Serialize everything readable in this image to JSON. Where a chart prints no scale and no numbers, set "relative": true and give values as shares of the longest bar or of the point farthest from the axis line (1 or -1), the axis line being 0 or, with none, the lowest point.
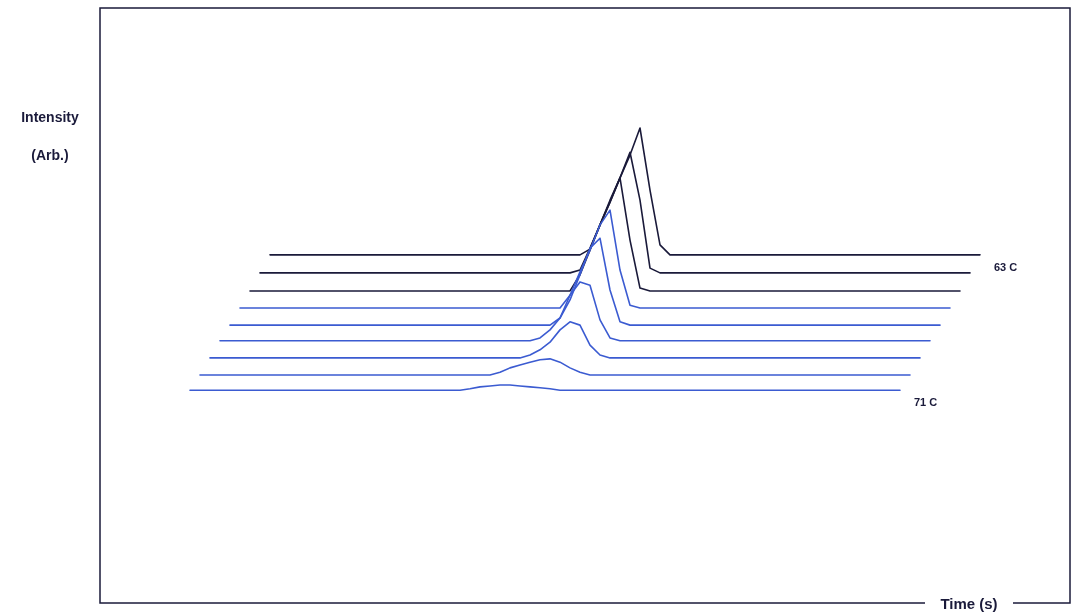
{
  "chart_data": {
    "type": "line",
    "relative": true,
    "xlabel": "Time (s)",
    "ylabel": "Intensity (Arb.)",
    "categories": [
      null,
      null,
      null,
      null,
      null,
      null,
      null,
      null,
      null,
      null,
      null,
      null,
      null,
      null,
      null,
      null,
      null,
      null,
      null,
      null,
      null,
      null,
      null,
      null,
      null,
      null,
      null,
      null,
      null,
      null,
      null,
      null,
      null,
      null,
      null,
      null,
      null,
      null,
      null,
      null,
      null,
      null,
      null,
      null,
      null,
      null,
      null,
      null,
      null,
      null,
      null,
      null,
      null,
      null,
      null,
      null,
      null,
      null,
      null,
      null,
      null,
      null,
      null,
      null,
      null,
      null,
      null,
      null,
      null,
      null,
      null,
      null,
      null,
      null,
      null,
      null,
      null,
      null,
      null,
      null,
      null,
      null,
      null,
      null,
      null,
      null,
      null,
      null,
      null,
      null,
      null,
      null,
      null,
      null,
      null,
      null,
      null,
      null
    ],
    "series": [
      {
        "name": "63 C",
        "color": "#1a1a3a",
        "values": [
          null,
          null,
          null,
          null,
          null,
          null,
          null,
          null,
          null,
          null,
          null,
          null,
          null,
          null,
          null,
          null,
          null,
          0.733,
          0.733,
          0.733,
          0.733,
          0.733,
          0.733,
          0.733,
          0.733,
          0.733,
          0.733,
          0.733,
          0.733,
          0.733,
          0.733,
          0.733,
          0.733,
          0.733,
          0.733,
          0.733,
          0.733,
          0.733,
          0.733,
          0.733,
          0.733,
          0.733,
          0.733,
          0.733,
          0.733,
          0.733,
          0.733,
          0.733,
          0.733,
          0.745,
          0.796,
          0.844,
          0.895,
          0.943,
          1.0,
          0.869,
          0.754,
          0.733,
          0.733,
          0.733,
          0.733,
          0.733,
          0.733,
          0.733,
          0.733,
          0.733,
          0.733,
          0.733,
          0.733,
          0.733,
          0.733,
          0.733,
          0.733,
          0.733,
          0.733,
          0.733,
          0.733,
          0.733,
          0.733,
          0.733,
          0.733,
          0.733,
          0.733,
          0.733,
          0.733,
          0.733,
          0.733,
          0.733,
          0.733,
          null,
          null,
          null,
          null,
          null,
          null,
          null,
          null,
          null
        ]
      },
      {
        "color": "#1a1a3a",
        "values": [
          null,
          null,
          null,
          null,
          null,
          null,
          null,
          null,
          null,
          null,
          null,
          null,
          null,
          null,
          null,
          null,
          0.695,
          0.695,
          0.695,
          0.695,
          0.695,
          0.695,
          0.695,
          0.695,
          0.695,
          0.695,
          0.695,
          0.695,
          0.695,
          0.695,
          0.695,
          0.695,
          0.695,
          0.695,
          0.695,
          0.695,
          0.695,
          0.695,
          0.695,
          0.695,
          0.695,
          0.695,
          0.695,
          0.695,
          0.695,
          0.695,
          0.695,
          0.695,
          0.701,
          0.747,
          0.796,
          0.844,
          0.895,
          0.949,
          0.848,
          0.705,
          0.695,
          0.695,
          0.695,
          0.695,
          0.695,
          0.695,
          0.695,
          0.695,
          0.695,
          0.695,
          0.695,
          0.695,
          0.695,
          0.695,
          0.695,
          0.695,
          0.695,
          0.695,
          0.695,
          0.695,
          0.695,
          0.695,
          0.695,
          0.695,
          0.695,
          0.695,
          0.695,
          0.695,
          0.695,
          0.695,
          0.695,
          0.695,
          null,
          null,
          null,
          null,
          null,
          null,
          null,
          null,
          null,
          null
        ]
      },
      {
        "color": "#1a1a3a",
        "values": [
          null,
          null,
          null,
          null,
          null,
          null,
          null,
          null,
          null,
          null,
          null,
          null,
          null,
          null,
          null,
          0.657,
          0.657,
          0.657,
          0.657,
          0.657,
          0.657,
          0.657,
          0.657,
          0.657,
          0.657,
          0.657,
          0.657,
          0.657,
          0.657,
          0.657,
          0.657,
          0.657,
          0.657,
          0.657,
          0.657,
          0.657,
          0.657,
          0.657,
          0.657,
          0.657,
          0.657,
          0.657,
          0.657,
          0.657,
          0.657,
          0.657,
          0.657,
          0.657,
          0.691,
          0.743,
          0.796,
          0.848,
          0.895,
          0.764,
          0.663,
          0.657,
          0.657,
          0.657,
          0.657,
          0.657,
          0.657,
          0.657,
          0.657,
          0.657,
          0.657,
          0.657,
          0.657,
          0.657,
          0.657,
          0.657,
          0.657,
          0.657,
          0.657,
          0.657,
          0.657,
          0.657,
          0.657,
          0.657,
          0.657,
          0.657,
          0.657,
          0.657,
          0.657,
          0.657,
          0.657,
          0.657,
          0.657,
          null,
          null,
          null,
          null,
          null,
          null,
          null,
          null,
          null,
          null,
          null
        ]
      },
      {
        "color": "#3b5bd1",
        "values": [
          null,
          null,
          null,
          null,
          null,
          null,
          null,
          null,
          null,
          null,
          null,
          null,
          null,
          null,
          0.621,
          0.621,
          0.621,
          0.621,
          0.621,
          0.621,
          0.621,
          0.621,
          0.621,
          0.621,
          0.621,
          0.621,
          0.621,
          0.621,
          0.621,
          0.621,
          0.621,
          0.621,
          0.621,
          0.621,
          0.621,
          0.621,
          0.621,
          0.621,
          0.621,
          0.621,
          0.621,
          0.621,
          0.621,
          0.621,
          0.621,
          0.621,
          0.621,
          0.648,
          0.697,
          0.743,
          0.796,
          0.827,
          0.701,
          0.627,
          0.621,
          0.621,
          0.621,
          0.621,
          0.621,
          0.621,
          0.621,
          0.621,
          0.621,
          0.621,
          0.621,
          0.621,
          0.621,
          0.621,
          0.621,
          0.621,
          0.621,
          0.621,
          0.621,
          0.621,
          0.621,
          0.621,
          0.621,
          0.621,
          0.621,
          0.621,
          0.621,
          0.621,
          0.621,
          0.621,
          0.621,
          0.621,
          null,
          null,
          null,
          null,
          null,
          null,
          null,
          null,
          null,
          null,
          null,
          null
        ]
      },
      {
        "color": "#3b5bd1",
        "values": [
          null,
          null,
          null,
          null,
          null,
          null,
          null,
          null,
          null,
          null,
          null,
          null,
          null,
          0.585,
          0.585,
          0.585,
          0.585,
          0.585,
          0.585,
          0.585,
          0.585,
          0.585,
          0.585,
          0.585,
          0.585,
          0.585,
          0.585,
          0.585,
          0.585,
          0.585,
          0.585,
          0.585,
          0.585,
          0.585,
          0.585,
          0.585,
          0.585,
          0.585,
          0.585,
          0.585,
          0.585,
          0.585,
          0.585,
          0.585,
          0.585,
          0.585,
          0.6,
          0.638,
          0.691,
          0.747,
          0.768,
          0.659,
          0.592,
          0.585,
          0.585,
          0.585,
          0.585,
          0.585,
          0.585,
          0.585,
          0.585,
          0.585,
          0.585,
          0.585,
          0.585,
          0.585,
          0.585,
          0.585,
          0.585,
          0.585,
          0.585,
          0.585,
          0.585,
          0.585,
          0.585,
          0.585,
          0.585,
          0.585,
          0.585,
          0.585,
          0.585,
          0.585,
          0.585,
          0.585,
          0.585,
          null,
          null,
          null,
          null,
          null,
          null,
          null,
          null,
          null,
          null,
          null,
          null,
          null
        ]
      },
      {
        "color": "#3b5bd1",
        "values": [
          null,
          null,
          null,
          null,
          null,
          null,
          null,
          null,
          null,
          null,
          null,
          null,
          0.552,
          0.552,
          0.552,
          0.552,
          0.552,
          0.552,
          0.552,
          0.552,
          0.552,
          0.552,
          0.552,
          0.552,
          0.552,
          0.552,
          0.552,
          0.552,
          0.552,
          0.552,
          0.552,
          0.552,
          0.552,
          0.552,
          0.552,
          0.552,
          0.552,
          0.552,
          0.552,
          0.552,
          0.552,
          0.552,
          0.552,
          0.552,
          0.558,
          0.575,
          0.6,
          0.648,
          0.676,
          0.669,
          0.596,
          0.558,
          0.552,
          0.552,
          0.552,
          0.552,
          0.552,
          0.552,
          0.552,
          0.552,
          0.552,
          0.552,
          0.552,
          0.552,
          0.552,
          0.552,
          0.552,
          0.552,
          0.552,
          0.552,
          0.552,
          0.552,
          0.552,
          0.552,
          0.552,
          0.552,
          0.552,
          0.552,
          0.552,
          0.552,
          0.552,
          0.552,
          0.552,
          0.552,
          null,
          null,
          null,
          null,
          null,
          null,
          null,
          null,
          null,
          null,
          null,
          null,
          null,
          null
        ]
      },
      {
        "color": "#3b5bd1",
        "values": [
          null,
          null,
          null,
          null,
          null,
          null,
          null,
          null,
          null,
          null,
          null,
          0.516,
          0.516,
          0.516,
          0.516,
          0.516,
          0.516,
          0.516,
          0.516,
          0.516,
          0.516,
          0.516,
          0.516,
          0.516,
          0.516,
          0.516,
          0.516,
          0.516,
          0.516,
          0.516,
          0.516,
          0.516,
          0.516,
          0.516,
          0.516,
          0.516,
          0.516,
          0.516,
          0.516,
          0.516,
          0.516,
          0.516,
          0.516,
          0.522,
          0.533,
          0.549,
          0.575,
          0.592,
          0.585,
          0.543,
          0.522,
          0.516,
          0.516,
          0.516,
          0.516,
          0.516,
          0.516,
          0.516,
          0.516,
          0.516,
          0.516,
          0.516,
          0.516,
          0.516,
          0.516,
          0.516,
          0.516,
          0.516,
          0.516,
          0.516,
          0.516,
          0.516,
          0.516,
          0.516,
          0.516,
          0.516,
          0.516,
          0.516,
          0.516,
          0.516,
          0.516,
          0.516,
          0.516,
          null,
          null,
          null,
          null,
          null,
          null,
          null,
          null,
          null,
          null,
          null,
          null,
          null,
          null,
          null
        ]
      },
      {
        "color": "#3b5bd1",
        "values": [
          null,
          null,
          null,
          null,
          null,
          null,
          null,
          null,
          null,
          null,
          0.48,
          0.48,
          0.48,
          0.48,
          0.48,
          0.48,
          0.48,
          0.48,
          0.48,
          0.48,
          0.48,
          0.48,
          0.48,
          0.48,
          0.48,
          0.48,
          0.48,
          0.48,
          0.48,
          0.48,
          0.48,
          0.48,
          0.48,
          0.48,
          0.48,
          0.48,
          0.48,
          0.48,
          0.48,
          0.48,
          0.486,
          0.495,
          0.501,
          0.507,
          0.512,
          0.514,
          0.507,
          0.495,
          0.486,
          0.48,
          0.48,
          0.48,
          0.48,
          0.48,
          0.48,
          0.48,
          0.48,
          0.48,
          0.48,
          0.48,
          0.48,
          0.48,
          0.48,
          0.48,
          0.48,
          0.48,
          0.48,
          0.48,
          0.48,
          0.48,
          0.48,
          0.48,
          0.48,
          0.48,
          0.48,
          0.48,
          0.48,
          0.48,
          0.48,
          0.48,
          0.48,
          0.48,
          null,
          null,
          null,
          null,
          null,
          null,
          null,
          null,
          null,
          null,
          null,
          null,
          null,
          null,
          null,
          null
        ]
      },
      {
        "name": "71 C",
        "color": "#3b5bd1",
        "values": [
          null,
          null,
          null,
          null,
          null,
          null,
          null,
          null,
          null,
          0.448,
          0.448,
          0.448,
          0.448,
          0.448,
          0.448,
          0.448,
          0.448,
          0.448,
          0.448,
          0.448,
          0.448,
          0.448,
          0.448,
          0.448,
          0.448,
          0.448,
          0.448,
          0.448,
          0.448,
          0.448,
          0.448,
          0.448,
          0.448,
          0.448,
          0.448,
          0.448,
          0.448,
          0.451,
          0.455,
          0.457,
          0.459,
          0.459,
          0.457,
          0.455,
          0.453,
          0.451,
          0.448,
          0.448,
          0.448,
          0.448,
          0.448,
          0.448,
          0.448,
          0.448,
          0.448,
          0.448,
          0.448,
          0.448,
          0.448,
          0.448,
          0.448,
          0.448,
          0.448,
          0.448,
          0.448,
          0.448,
          0.448,
          0.448,
          0.448,
          0.448,
          0.448,
          0.448,
          0.448,
          0.448,
          0.448,
          0.448,
          0.448,
          0.448,
          0.448,
          0.448,
          0.448,
          null,
          null,
          null,
          null,
          null,
          null,
          null,
          null,
          null,
          null,
          null,
          null,
          null,
          null,
          null,
          null,
          null
        ]
      }
    ]
  }
}
